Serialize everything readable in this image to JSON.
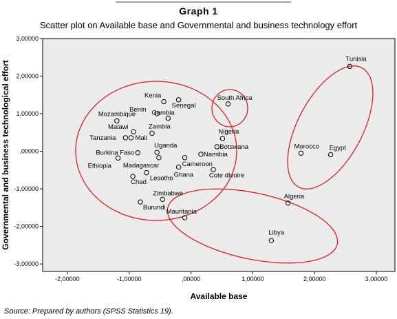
{
  "header": {
    "title": "Graph 1",
    "subtitle": "Scatter plot on Available base and Governmental and business technology effort"
  },
  "footer": {
    "source": "Source: Prepared by authors (SPSS Statistics 19)."
  },
  "colors": {
    "plot_background": "#ebebeb",
    "ellipse": "#e02020",
    "marker": "#000000"
  },
  "chart_data": {
    "type": "scatter",
    "xlabel": "Available base",
    "ylabel": "Governmental and business technological effort",
    "xlim": [
      -2.4,
      3.3
    ],
    "ylim": [
      -3.2,
      3.0
    ],
    "grid": false,
    "x_ticks": [
      {
        "value": -2,
        "label": "-2,00000"
      },
      {
        "value": -1,
        "label": "-1,00000"
      },
      {
        "value": 0,
        "label": ",00000"
      },
      {
        "value": 1,
        "label": "1,00000"
      },
      {
        "value": 2,
        "label": "2,00000"
      },
      {
        "value": 3,
        "label": "3,00000"
      }
    ],
    "y_ticks": [
      {
        "value": 3,
        "label": "3,00000"
      },
      {
        "value": 2,
        "label": "2,00000"
      },
      {
        "value": 1,
        "label": "1,00000"
      },
      {
        "value": 0,
        "label": ",00000"
      },
      {
        "value": -1,
        "label": "-1,00000"
      },
      {
        "value": -2,
        "label": "-2,00000"
      },
      {
        "value": -3,
        "label": "-3,00000"
      }
    ],
    "points": [
      {
        "label": "Tunisia",
        "x": 2.57,
        "y": 2.26
      },
      {
        "label": "South Africa",
        "x": 0.6,
        "y": 1.26
      },
      {
        "label": "Kenia",
        "x": -0.44,
        "y": 1.32
      },
      {
        "label": "Senegal",
        "x": -0.2,
        "y": 1.37
      },
      {
        "label": "Benin",
        "x": -0.55,
        "y": 1.0
      },
      {
        "label": "Gambia",
        "x": -0.37,
        "y": 0.88
      },
      {
        "label": "Mozambique",
        "x": -1.2,
        "y": 0.81
      },
      {
        "label": "Malawi",
        "x": -0.93,
        "y": 0.52
      },
      {
        "label": "Zambia",
        "x": -0.63,
        "y": 0.48
      },
      {
        "label": "Tanzania",
        "x": -1.06,
        "y": 0.36
      },
      {
        "label": "Mali",
        "x": -0.97,
        "y": 0.36
      },
      {
        "label": "Nigeria",
        "x": 0.51,
        "y": 0.34
      },
      {
        "label": "Botswana",
        "x": 0.42,
        "y": 0.12
      },
      {
        "label": "Uganda",
        "x": -0.55,
        "y": -0.03
      },
      {
        "label": "Burkina Faso",
        "x": -0.86,
        "y": -0.04
      },
      {
        "label": "Namibia",
        "x": 0.16,
        "y": -0.08
      },
      {
        "label": "Morocco",
        "x": 1.78,
        "y": -0.05
      },
      {
        "label": "Egypt",
        "x": 2.26,
        "y": -0.09
      },
      {
        "label": "Ethiopia",
        "x": -1.18,
        "y": -0.18
      },
      {
        "label": "Madagascar",
        "x": -0.52,
        "y": -0.17
      },
      {
        "label": "Cameroon",
        "x": -0.1,
        "y": -0.17
      },
      {
        "label": "Ghana",
        "x": -0.2,
        "y": -0.42
      },
      {
        "label": "Cote dIvoire",
        "x": 0.36,
        "y": -0.49
      },
      {
        "label": "Lesotho",
        "x": -0.72,
        "y": -0.57
      },
      {
        "label": "Chad",
        "x": -0.94,
        "y": -0.67
      },
      {
        "label": "Zimbabwe",
        "x": -0.46,
        "y": -1.28
      },
      {
        "label": "Burundi",
        "x": -0.82,
        "y": -1.35
      },
      {
        "label": "Algeria",
        "x": 1.57,
        "y": -1.38
      },
      {
        "label": "Mauritania",
        "x": -0.1,
        "y": -1.77
      },
      {
        "label": "Libya",
        "x": 1.3,
        "y": -2.38
      }
    ]
  }
}
